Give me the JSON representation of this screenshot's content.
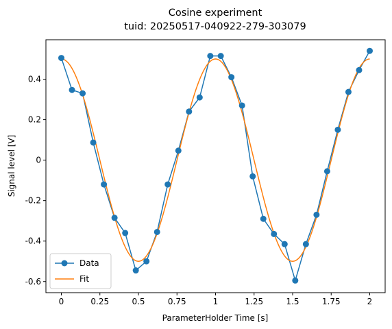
{
  "chart_data": {
    "type": "line",
    "title": "Cosine experiment",
    "subtitle": "tuid: 20250517-040922-279-303079",
    "xlabel": "ParameterHolder Time [s]",
    "ylabel": "Signal level [V]",
    "xlim": [
      -0.1,
      2.1
    ],
    "ylim": [
      -0.655,
      0.595
    ],
    "x_ticks": [
      0,
      0.25,
      0.5,
      0.75,
      1,
      1.25,
      1.5,
      1.75,
      2
    ],
    "x_tick_labels": [
      "0",
      "0.25",
      "0.5",
      "0.75",
      "1",
      "1.25",
      "1.5",
      "1.75",
      "2"
    ],
    "y_ticks": [
      -0.6,
      -0.4,
      -0.2,
      0,
      0.2,
      0.4
    ],
    "y_tick_labels": [
      "-0.6",
      "-0.4",
      "-0.2",
      "0",
      "0.2",
      "0.4"
    ],
    "grid": false,
    "legend_position": "lower-left",
    "series": [
      {
        "name": "Data",
        "color": "#1f77b4",
        "marker": "circle",
        "x": [
          0,
          0.069,
          0.138,
          0.207,
          0.276,
          0.345,
          0.414,
          0.483,
          0.552,
          0.621,
          0.69,
          0.759,
          0.828,
          0.897,
          0.966,
          1.034,
          1.103,
          1.172,
          1.241,
          1.31,
          1.379,
          1.448,
          1.517,
          1.586,
          1.655,
          1.724,
          1.793,
          1.862,
          1.931,
          2.0
        ],
        "y": [
          0.505,
          0.347,
          0.33,
          0.087,
          -0.12,
          -0.285,
          -0.36,
          -0.545,
          -0.5,
          -0.355,
          -0.12,
          0.047,
          0.24,
          0.31,
          0.515,
          0.515,
          0.41,
          0.27,
          -0.08,
          -0.29,
          -0.365,
          -0.415,
          -0.595,
          -0.415,
          -0.27,
          -0.055,
          0.15,
          0.337,
          0.445,
          0.54
        ]
      },
      {
        "name": "Fit",
        "color": "#ff7f0e",
        "marker": "none",
        "amplitude": 0.5,
        "frequency_hz": 1.0,
        "x_range": [
          0,
          2
        ]
      }
    ]
  }
}
